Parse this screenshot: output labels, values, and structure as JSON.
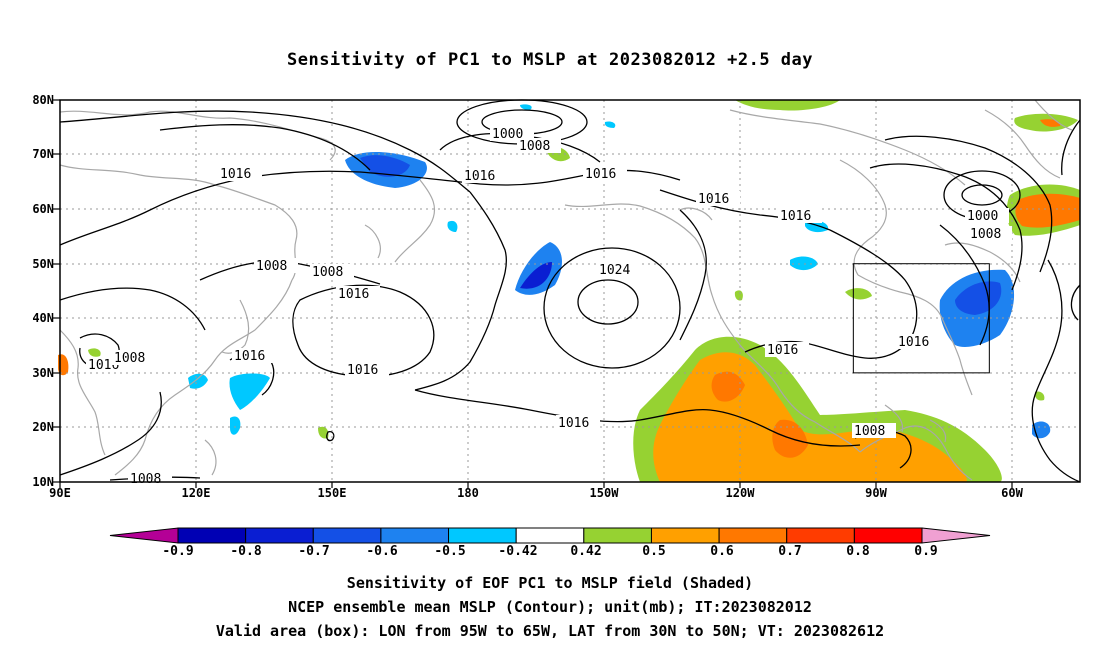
{
  "title": "Sensitivity of PC1 to MSLP at 2023082012 +2.5 day",
  "lat_ticks": [
    "80N",
    "70N",
    "60N",
    "50N",
    "40N",
    "30N",
    "20N",
    "10N"
  ],
  "lon_ticks": [
    "90E",
    "120E",
    "150E",
    "180",
    "150W",
    "120W",
    "90W",
    "60W"
  ],
  "colorbar": {
    "labels": [
      "-0.9",
      "-0.8",
      "-0.7",
      "-0.6",
      "-0.5",
      "-0.42",
      "0.42",
      "0.5",
      "0.6",
      "0.7",
      "0.8",
      "0.9"
    ],
    "colors": [
      "#b40096",
      "#0000b4",
      "#0a1ed2",
      "#1450e6",
      "#1e82f0",
      "#00c8ff",
      "#ffffff",
      "#96d232",
      "#ffa000",
      "#ff7800",
      "#ff3c00",
      "#ff0000",
      "#f0a0d2"
    ]
  },
  "contour_labels": [
    "1000",
    "1008",
    "1016",
    "1016",
    "1016",
    "1016",
    "1016",
    "1008",
    "1008",
    "1016",
    "1024",
    "1016",
    "1016",
    "1016",
    "1000",
    "1008",
    "1016",
    "1008",
    "1016",
    "1008",
    "1016",
    "1008"
  ],
  "captions": [
    "Sensitivity of EOF PC1 to MSLP field (Shaded)",
    "NCEP ensemble mean MSLP (Contour); unit(mb); IT:2023082012",
    "Valid area (box): LON from 95W to 65W, LAT from 30N to 50N; VT: 2023082612"
  ],
  "valid_box": {
    "lon": [
      -95,
      -65
    ],
    "lat": [
      30,
      50
    ]
  }
}
